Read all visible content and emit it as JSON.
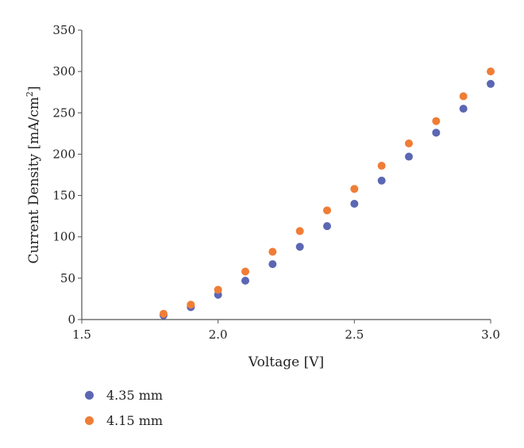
{
  "chart_data": {
    "type": "scatter",
    "title": "",
    "xlabel": "Voltage [V]",
    "ylabel_main": "Current Density [mA/cm",
    "ylabel_sup": "2",
    "ylabel_tail": "]",
    "xlim": [
      1.5,
      3.0
    ],
    "ylim": [
      0,
      350
    ],
    "x_ticks": [
      "1.5",
      "2.0",
      "2.5",
      "3.0"
    ],
    "x_tick_values": [
      1.5,
      2.0,
      2.5,
      3.0
    ],
    "y_ticks": [
      "0",
      "50",
      "100",
      "150",
      "200",
      "250",
      "300",
      "350"
    ],
    "y_tick_values": [
      0,
      50,
      100,
      150,
      200,
      250,
      300,
      350
    ],
    "grid": false,
    "legend_position": "bottom-left",
    "x": [
      1.8,
      1.9,
      2.0,
      2.1,
      2.2,
      2.3,
      2.4,
      2.5,
      2.6,
      2.7,
      2.8,
      2.9,
      3.0
    ],
    "series": [
      {
        "name": "4.35 mm",
        "color": "#5b67b3",
        "values": [
          5,
          15,
          30,
          47,
          67,
          88,
          113,
          140,
          168,
          197,
          226,
          255,
          285
        ]
      },
      {
        "name": "4.15 mm",
        "color": "#f07d36",
        "values": [
          7,
          18,
          36,
          58,
          82,
          107,
          132,
          158,
          186,
          213,
          240,
          270,
          300
        ]
      }
    ]
  }
}
